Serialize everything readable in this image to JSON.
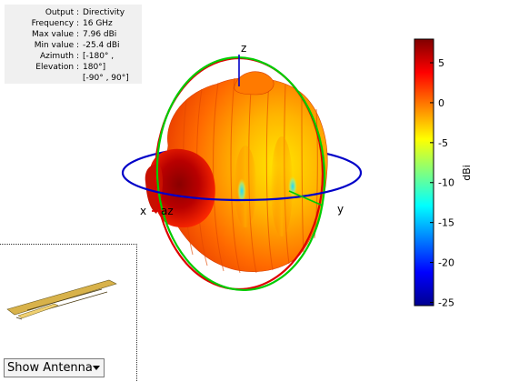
{
  "info": {
    "rows": [
      {
        "key": "Output :",
        "value": "Directivity"
      },
      {
        "key": "Frequency :",
        "value": "16 GHz"
      },
      {
        "key": "Max value :",
        "value": "7.96 dBi"
      },
      {
        "key": "Min value :",
        "value": "-25.4 dBi"
      },
      {
        "key": "Azimuth :",
        "value": "[-180° ,"
      },
      {
        "key": "Elevation :",
        "value": "180°]"
      },
      {
        "key": "",
        "value": "[-90° , 90°]"
      }
    ]
  },
  "axes": {
    "x": "x",
    "y": "y",
    "z": "z",
    "az": "az"
  },
  "colorbar": {
    "label": "dBi",
    "ticks": [
      "5",
      "0",
      "-5",
      "-10",
      "-15",
      "-20",
      "-25"
    ],
    "range": [
      -25.4,
      7.96
    ],
    "colormap": "jet"
  },
  "show_select": {
    "value": "Show Antenna"
  },
  "colors": {
    "xy_ring": "#0000c8",
    "xz_ring": "#dd0000",
    "yz_ring": "#00cc00"
  }
}
